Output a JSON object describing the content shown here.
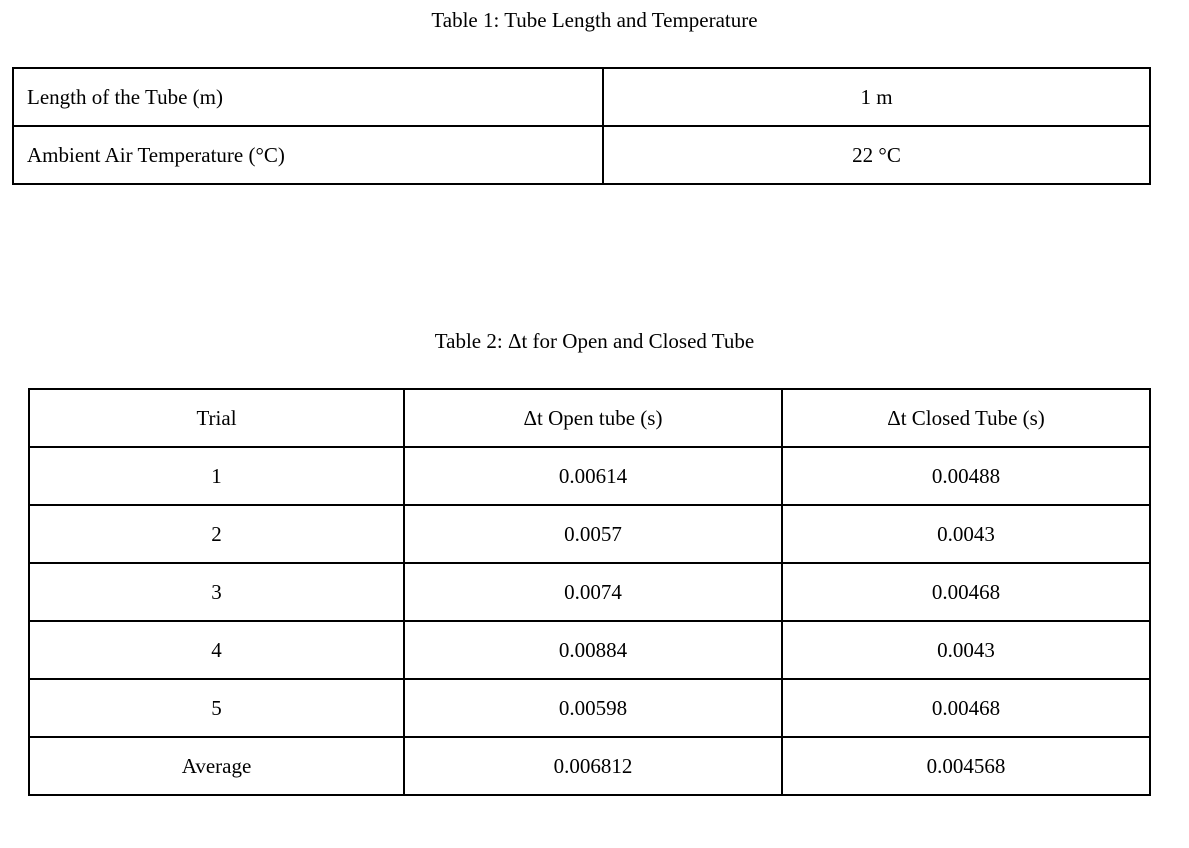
{
  "page": {
    "background_color": "#ffffff",
    "text_color": "#000000",
    "border_color": "#000000"
  },
  "table1": {
    "title": "Table 1: Tube Length and Temperature",
    "rows": [
      {
        "label": "Length of the Tube (m)",
        "value": "1 m"
      },
      {
        "label": "Ambient Air Temperature (°C)",
        "value": "22 °C"
      }
    ]
  },
  "table2": {
    "title": "Table 2: Δt for Open and Closed Tube",
    "columns": [
      "Trial",
      "Δt Open tube (s)",
      "Δt Closed Tube (s)"
    ],
    "rows": [
      [
        "1",
        "0.00614",
        "0.00488"
      ],
      [
        "2",
        "0.0057",
        "0.0043"
      ],
      [
        "3",
        "0.0074",
        "0.00468"
      ],
      [
        "4",
        "0.00884",
        "0.0043"
      ],
      [
        "5",
        "0.00598",
        "0.00468"
      ],
      [
        "Average",
        "0.006812",
        "0.004568"
      ]
    ]
  }
}
